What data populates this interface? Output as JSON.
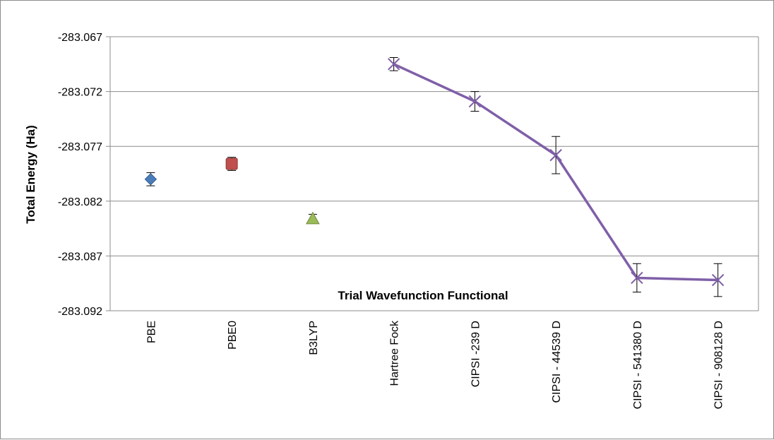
{
  "chart_data": {
    "type": "scatter",
    "title": "",
    "xlabel": "Trial Wavefunction Functional",
    "ylabel": "Total Energy (Ha)",
    "ylim": [
      -283.092,
      -283.067
    ],
    "y_ticks": [
      -283.067,
      -283.072,
      -283.077,
      -283.082,
      -283.087,
      -283.092
    ],
    "y_tick_labels": [
      "-283.067",
      "-283.072",
      "-283.077",
      "-283.082",
      "-283.087",
      "-283.092"
    ],
    "grid": "horizontal",
    "legend": "none",
    "categories": [
      "PBE",
      "PBE0",
      "B3LYP",
      "Hartree Fock",
      "CIPSI -239 D",
      "CIPSI - 44539 D",
      "CIPSI - 541380 D",
      "CIPSI - 908128 D"
    ],
    "series": [
      {
        "marker": "diamond",
        "color": "#4a7ebb",
        "connected": false,
        "points": [
          {
            "category": "PBE",
            "y": -283.08,
            "err": 0.0006
          }
        ]
      },
      {
        "marker": "square",
        "color": "#c0504d",
        "connected": false,
        "points": [
          {
            "category": "PBE0",
            "y": -283.0786,
            "err": 0.0006
          }
        ]
      },
      {
        "marker": "triangle",
        "color": "#9bbb59",
        "connected": false,
        "points": [
          {
            "category": "B3LYP",
            "y": -283.0836,
            "err": 0.0004
          }
        ]
      },
      {
        "marker": "x",
        "color": "#7f5fa8",
        "connected": true,
        "points": [
          {
            "category": "Hartree Fock",
            "y": -283.0695,
            "err": 0.0006
          },
          {
            "category": "CIPSI -239 D",
            "y": -283.0729,
            "err": 0.0009
          },
          {
            "category": "CIPSI - 44539 D",
            "y": -283.0778,
            "err": 0.0017
          },
          {
            "category": "CIPSI - 541380 D",
            "y": -283.089,
            "err": 0.0013
          },
          {
            "category": "CIPSI - 908128 D",
            "y": -283.0892,
            "err": 0.0015
          }
        ]
      }
    ]
  }
}
